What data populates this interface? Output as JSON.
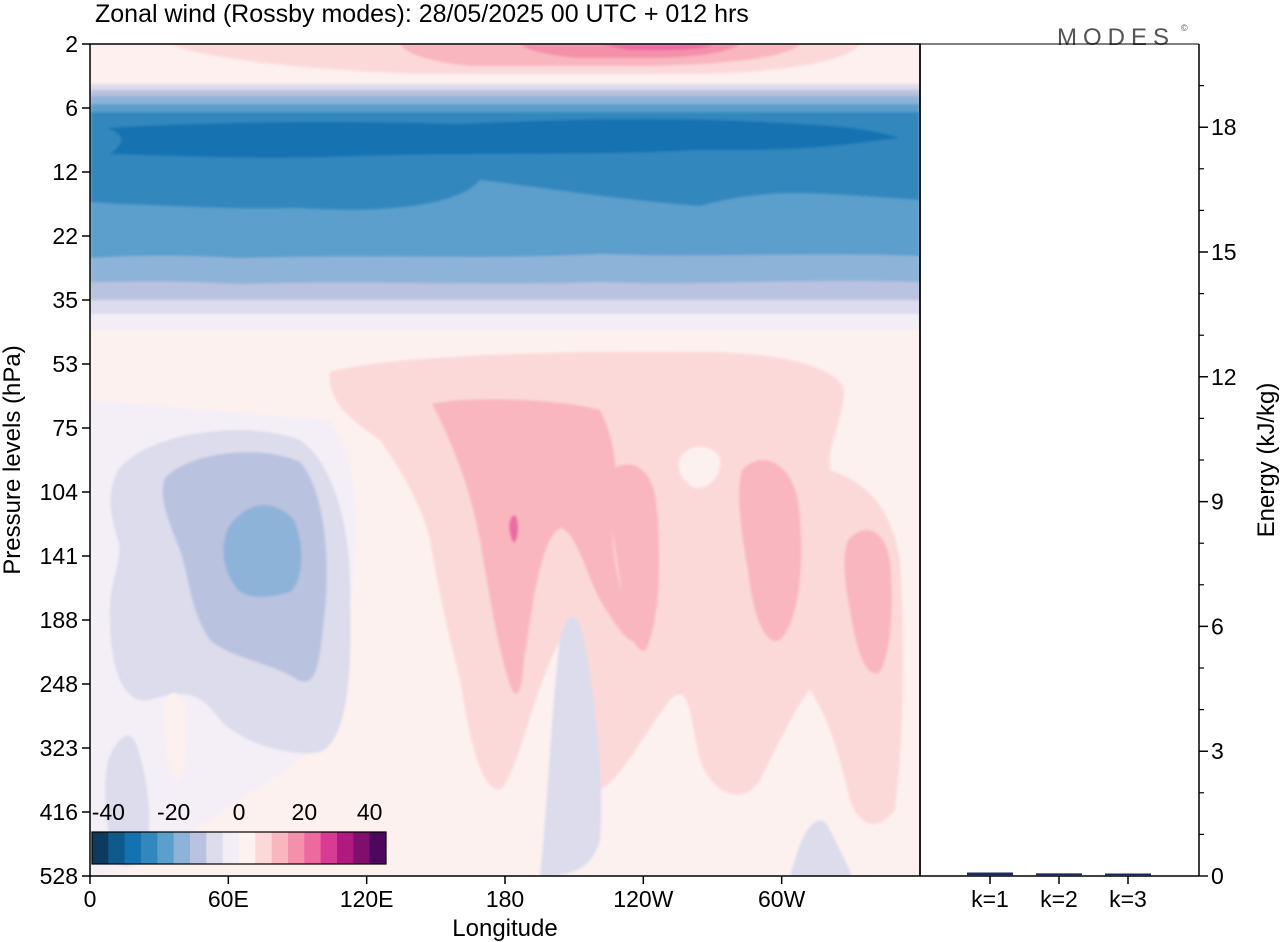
{
  "title": "Zonal wind (Rossby modes):  28/05/2025  00 UTC  + 012 hrs",
  "logo_text": "MODES",
  "logo_mark": "©",
  "chart_data": [
    {
      "type": "heatmap",
      "xlabel": "Longitude",
      "ylabel": "Pressure levels (hPa)",
      "x_ticks": [
        "0",
        "60E",
        "120E",
        "180",
        "120W",
        "60W"
      ],
      "y_ticks": [
        "2",
        "6",
        "12",
        "22",
        "35",
        "53",
        "75",
        "104",
        "141",
        "188",
        "248",
        "323",
        "416",
        "528"
      ],
      "y_scale": "log (pressure levels)",
      "colorbar": {
        "ticks": [
          "-40",
          "-20",
          "0",
          "20",
          "40"
        ],
        "range": [
          -45,
          45
        ],
        "step": 5,
        "colors": [
          "#0c3b5e",
          "#0e5a8c",
          "#1572b0",
          "#3288bd",
          "#5b9fcc",
          "#8eb3d8",
          "#b9c2de",
          "#dcdcec",
          "#f3eef5",
          "#fdf2ef",
          "#fcd8d8",
          "#f9b6bf",
          "#f490aa",
          "#ec6aa0",
          "#d83b94",
          "#b0197f",
          "#800e6e",
          "#4d075e"
        ]
      },
      "bands": [
        {
          "pressure_range": [
            "2",
            "4"
          ],
          "wind": "5 to 20"
        },
        {
          "pressure_range": [
            "6",
            "22"
          ],
          "wind": "-30 to -20"
        },
        {
          "pressure_range": [
            "22",
            "35"
          ],
          "wind": "-15 to -5"
        },
        {
          "pressure_range": [
            "75",
            "248"
          ],
          "longitude_range": [
            "10E",
            "95E"
          ],
          "wind": "-15 to -5"
        },
        {
          "pressure_range": [
            "53",
            "323"
          ],
          "longitude_range": [
            "140E",
            "80W"
          ],
          "wind": "5 to 15"
        }
      ]
    },
    {
      "type": "bar",
      "categories": [
        "k=1",
        "k=2",
        "k=3"
      ],
      "values": [
        0.06,
        0.04,
        0.03
      ],
      "ylabel": "Energy (kJ/kg)",
      "y_ticks": [
        "0",
        "3",
        "6",
        "9",
        "12",
        "15",
        "18"
      ],
      "ylim": [
        0,
        20
      ],
      "bar_color": "#1f2a5c"
    }
  ]
}
